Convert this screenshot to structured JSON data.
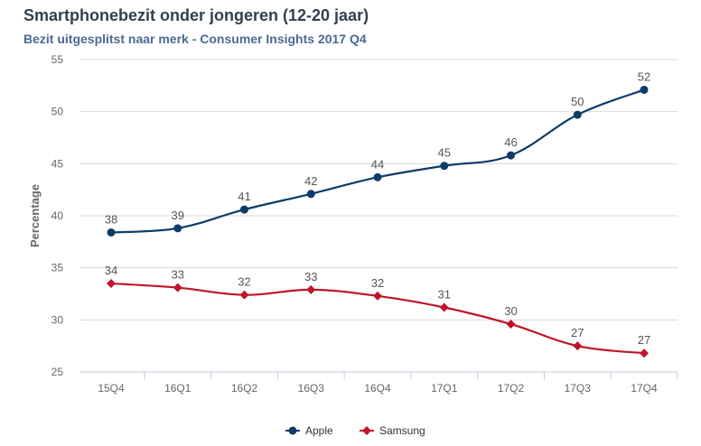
{
  "chart_data": {
    "type": "line",
    "title": "Smartphonebezit onder jongeren (12-20 jaar)",
    "subtitle": "Bezit uitgesplitst naar merk - Consumer Insights 2017 Q4",
    "xlabel": "",
    "ylabel": "Percentage",
    "ylim": [
      25,
      55
    ],
    "yticks": [
      "25",
      "30",
      "35",
      "40",
      "45",
      "50",
      "55"
    ],
    "categories": [
      "15Q4",
      "16Q1",
      "16Q2",
      "16Q3",
      "16Q4",
      "17Q1",
      "17Q2",
      "17Q3",
      "17Q4"
    ],
    "grid": "horizontal",
    "legend": "bottom-center",
    "series": [
      {
        "name": "Apple",
        "color": "#0d3c69",
        "marker": "circle",
        "values": [
          38.4,
          38.8,
          40.6,
          42.1,
          43.7,
          44.8,
          45.8,
          49.7,
          52.1
        ],
        "labels": [
          "38",
          "39",
          "41",
          "42",
          "44",
          "45",
          "46",
          "50",
          "52"
        ]
      },
      {
        "name": "Samsung",
        "color": "#c0142a",
        "marker": "diamond",
        "values": [
          33.5,
          33.1,
          32.4,
          32.9,
          32.3,
          31.2,
          29.6,
          27.5,
          26.8
        ],
        "labels": [
          "34",
          "33",
          "32",
          "33",
          "32",
          "31",
          "30",
          "27",
          "27"
        ]
      }
    ]
  }
}
